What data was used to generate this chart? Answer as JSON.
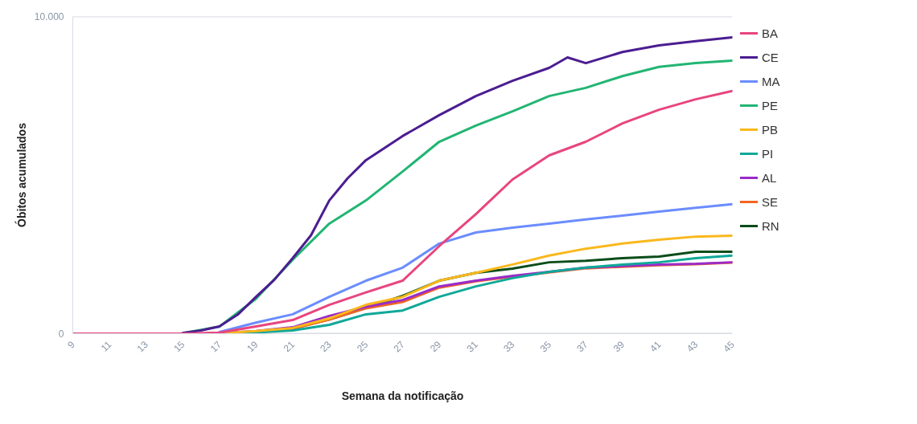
{
  "chart_data": {
    "type": "line",
    "xlabel": "Semana da notificação",
    "ylabel": "Óbitos acumulados",
    "x": [
      9,
      11,
      13,
      15,
      17,
      19,
      21,
      23,
      25,
      27,
      29,
      31,
      33,
      35,
      37,
      39,
      41,
      43,
      45
    ],
    "xlim": [
      9,
      45
    ],
    "ylim": [
      0,
      10000
    ],
    "xticks": [
      9,
      11,
      13,
      15,
      17,
      19,
      21,
      23,
      25,
      27,
      29,
      31,
      33,
      35,
      37,
      39,
      41,
      43,
      45
    ],
    "yticks": [
      0,
      {
        "value": 10000,
        "label": "10.000"
      }
    ],
    "grid": "y",
    "legend": "right",
    "marker": "none",
    "line_style": "solid",
    "series": [
      {
        "name": "BA",
        "color": "#e8457f",
        "values": [
          0,
          0,
          0,
          0,
          30,
          230,
          430,
          910,
          1300,
          1670,
          2760,
          3770,
          4860,
          5620,
          6050,
          6630,
          7060,
          7390,
          7650
        ]
      },
      {
        "name": "CE",
        "color": "#4b1d91",
        "x": [
          15,
          16,
          17,
          18,
          19,
          20,
          21,
          22,
          23,
          24,
          25,
          27,
          29,
          31,
          33,
          35,
          36,
          37,
          39,
          41,
          43,
          45
        ],
        "values": [
          20,
          100,
          230,
          600,
          1160,
          1700,
          2380,
          3100,
          4200,
          4900,
          5470,
          6230,
          6890,
          7490,
          7970,
          8380,
          8710,
          8530,
          8880,
          9090,
          9220,
          9340
        ]
      },
      {
        "name": "MA",
        "color": "#6b8cff",
        "x": [
          17,
          19,
          21,
          23,
          25,
          27,
          29,
          31,
          33,
          35,
          37,
          39,
          41,
          43,
          45
        ],
        "values": [
          50,
          350,
          610,
          1160,
          1670,
          2080,
          2840,
          3190,
          3340,
          3470,
          3600,
          3720,
          3850,
          3970,
          4080
        ]
      },
      {
        "name": "PE",
        "color": "#22b573",
        "x": [
          15,
          17,
          19,
          21,
          23,
          25,
          27,
          29,
          31,
          33,
          35,
          37,
          39,
          41,
          43,
          45
        ],
        "values": [
          20,
          220,
          1100,
          2330,
          3470,
          4200,
          5110,
          6050,
          6560,
          7010,
          7490,
          7750,
          8120,
          8410,
          8530,
          8610
        ]
      },
      {
        "name": "PB",
        "color": "#f9b81c",
        "x": [
          17,
          19,
          21,
          23,
          25,
          27,
          29,
          31,
          33,
          35,
          37,
          39,
          41,
          43,
          45
        ],
        "values": [
          10,
          80,
          180,
          480,
          910,
          1160,
          1670,
          1920,
          2180,
          2460,
          2680,
          2840,
          2960,
          3060,
          3090
        ]
      },
      {
        "name": "PI",
        "color": "#10a898",
        "x": [
          17,
          19,
          21,
          23,
          25,
          27,
          29,
          31,
          33,
          35,
          37,
          39,
          41,
          43,
          45
        ],
        "values": [
          0,
          40,
          100,
          280,
          610,
          730,
          1160,
          1490,
          1750,
          1950,
          2080,
          2180,
          2250,
          2380,
          2460
        ]
      },
      {
        "name": "AL",
        "color": "#9a2bc9",
        "x": [
          17,
          19,
          21,
          23,
          25,
          27,
          29,
          31,
          33,
          35,
          37,
          39,
          41,
          43,
          45
        ],
        "values": [
          10,
          80,
          200,
          560,
          850,
          1060,
          1490,
          1670,
          1820,
          1950,
          2080,
          2130,
          2180,
          2200,
          2250
        ]
      },
      {
        "name": "SE",
        "color": "#f26522",
        "x": [
          17,
          19,
          21,
          23,
          25,
          27,
          29,
          31,
          33,
          35,
          37,
          39,
          41,
          43,
          45
        ],
        "values": [
          10,
          60,
          150,
          450,
          800,
          1000,
          1450,
          1650,
          1800,
          1930,
          2060,
          2110,
          2160,
          2190,
          2240
        ]
      },
      {
        "name": "RN",
        "color": "#0b4d1a",
        "x": [
          17,
          19,
          21,
          23,
          25,
          27,
          29,
          31,
          33,
          35,
          37,
          39,
          41,
          43,
          45
        ],
        "values": [
          10,
          70,
          170,
          450,
          810,
          1190,
          1670,
          1920,
          2050,
          2250,
          2300,
          2380,
          2430,
          2580,
          2580
        ]
      }
    ]
  }
}
